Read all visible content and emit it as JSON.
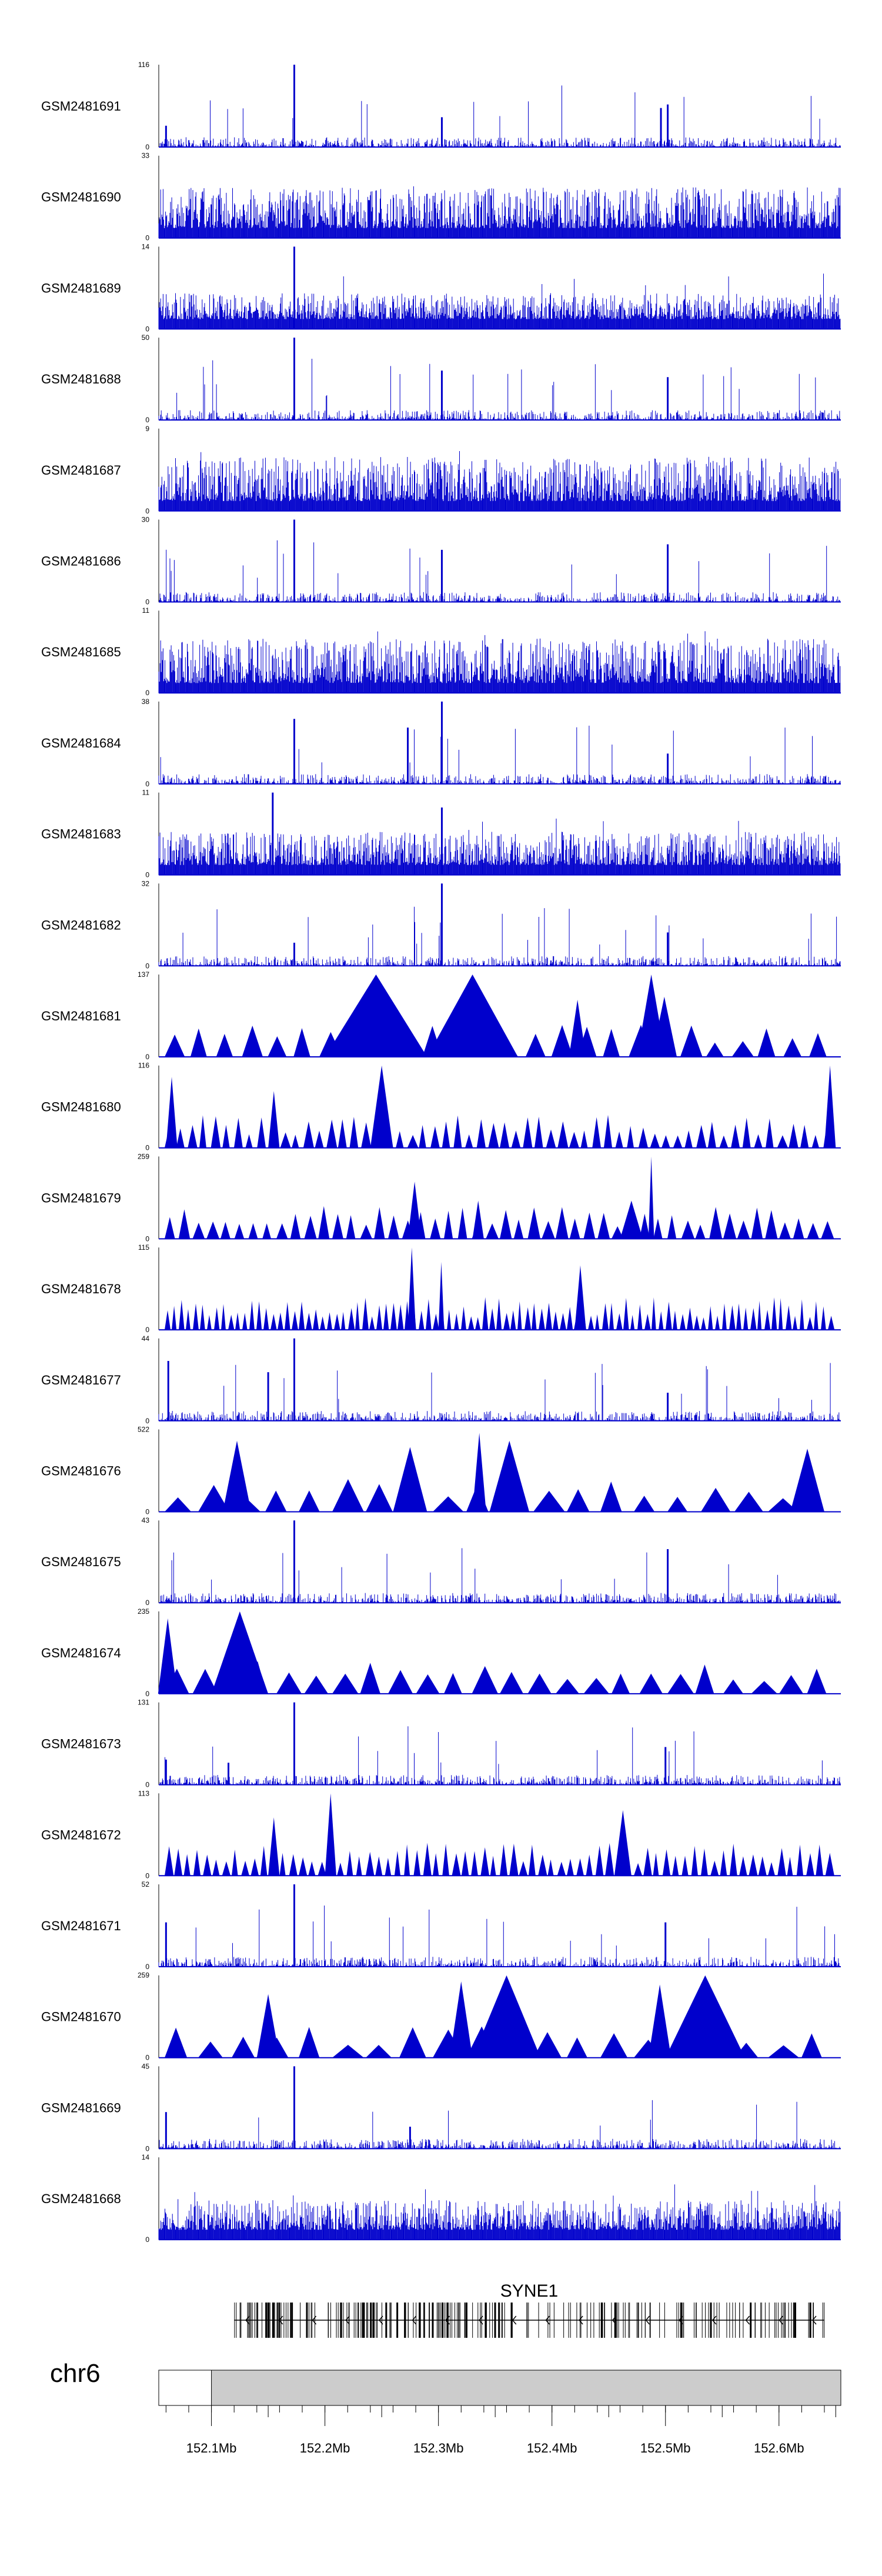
{
  "chart_data": {
    "type": "area",
    "genome_region": "chr6",
    "x_range_mb": [
      152.0536,
      152.6545
    ],
    "x_ticks": [
      152.1,
      152.15,
      152.2,
      152.25,
      152.3,
      152.35,
      152.4,
      152.45,
      152.5,
      152.55,
      152.6,
      152.65
    ],
    "x_tick_labels": [
      "152.1Mb",
      "152.2Mb",
      "152.3Mb",
      "152.4Mb",
      "152.5Mb",
      "152.6Mb"
    ],
    "gene": "SYNE1",
    "gene_range_mb": [
      152.12,
      152.64
    ],
    "series_color": "#0000cc",
    "tracks": [
      {
        "name": "GSM2481691",
        "ymax": 116,
        "style": "bars",
        "density": 0.12,
        "peaks": [
          [
            152.173,
            116
          ],
          [
            152.303,
            42
          ],
          [
            152.496,
            55
          ],
          [
            152.502,
            60
          ],
          [
            152.06,
            30
          ]
        ]
      },
      {
        "name": "GSM2481690",
        "ymax": 33,
        "style": "bars",
        "density": 0.55,
        "peaks": []
      },
      {
        "name": "GSM2481689",
        "ymax": 14,
        "style": "bars",
        "density": 0.35,
        "peaks": [
          [
            152.173,
            14
          ]
        ]
      },
      {
        "name": "GSM2481688",
        "ymax": 50,
        "style": "bars",
        "density": 0.08,
        "peaks": [
          [
            152.173,
            50
          ],
          [
            152.303,
            30
          ],
          [
            152.502,
            26
          ]
        ]
      },
      {
        "name": "GSM2481687",
        "ymax": 9,
        "style": "bars",
        "density": 0.6,
        "peaks": []
      },
      {
        "name": "GSM2481686",
        "ymax": 30,
        "style": "bars",
        "density": 0.08,
        "peaks": [
          [
            152.173,
            30
          ],
          [
            152.303,
            19
          ],
          [
            152.502,
            21
          ]
        ]
      },
      {
        "name": "GSM2481685",
        "ymax": 11,
        "style": "bars",
        "density": 0.6,
        "peaks": []
      },
      {
        "name": "GSM2481684",
        "ymax": 38,
        "style": "bars",
        "density": 0.08,
        "peaks": [
          [
            152.173,
            30
          ],
          [
            152.273,
            26
          ],
          [
            152.303,
            38
          ],
          [
            152.502,
            14
          ]
        ]
      },
      {
        "name": "GSM2481683",
        "ymax": 11,
        "style": "bars",
        "density": 0.45,
        "peaks": [
          [
            152.154,
            11
          ],
          [
            152.303,
            9
          ]
        ]
      },
      {
        "name": "GSM2481682",
        "ymax": 32,
        "style": "bars",
        "density": 0.07,
        "peaks": [
          [
            152.303,
            32
          ],
          [
            152.173,
            9
          ],
          [
            152.502,
            13
          ]
        ]
      },
      {
        "name": "GSM2481681",
        "ymax": 137,
        "style": "tri",
        "tri_count": 26,
        "big": [
          [
            152.2,
            152.29,
            137
          ],
          [
            152.29,
            152.37,
            137
          ],
          [
            152.475,
            152.5,
            137
          ],
          [
            152.415,
            152.43,
            95
          ],
          [
            152.488,
            152.51,
            100
          ]
        ]
      },
      {
        "name": "GSM2481680",
        "ymax": 116,
        "style": "tri",
        "tri_count": 58,
        "big": [
          [
            152.24,
            152.26,
            116
          ],
          [
            152.64,
            152.65,
            116
          ],
          [
            152.06,
            152.07,
            100
          ],
          [
            152.15,
            152.16,
            80
          ]
        ]
      },
      {
        "name": "GSM2481679",
        "ymax": 259,
        "style": "tri",
        "tri_count": 48,
        "big": [
          [
            152.273,
            152.285,
            180
          ],
          [
            152.485,
            152.49,
            259
          ],
          [
            152.33,
            152.34,
            120
          ],
          [
            152.46,
            152.48,
            120
          ]
        ]
      },
      {
        "name": "GSM2481678",
        "ymax": 115,
        "style": "tri",
        "tri_count": 95,
        "big": [
          [
            152.273,
            152.28,
            115
          ],
          [
            152.3,
            152.305,
            95
          ],
          [
            152.42,
            152.43,
            90
          ]
        ]
      },
      {
        "name": "GSM2481677",
        "ymax": 44,
        "style": "bars",
        "density": 0.1,
        "peaks": [
          [
            152.173,
            44
          ],
          [
            152.062,
            32
          ],
          [
            152.15,
            26
          ],
          [
            152.502,
            15
          ]
        ]
      },
      {
        "name": "GSM2481676",
        "ymax": 522,
        "style": "tri",
        "tri_count": 20,
        "big": [
          [
            152.11,
            152.135,
            450
          ],
          [
            152.345,
            152.38,
            450
          ],
          [
            152.61,
            152.64,
            400
          ],
          [
            152.26,
            152.29,
            410
          ],
          [
            152.33,
            152.342,
            500
          ]
        ]
      },
      {
        "name": "GSM2481675",
        "ymax": 43,
        "style": "bars",
        "density": 0.15,
        "peaks": [
          [
            152.173,
            43
          ],
          [
            152.502,
            28
          ]
        ]
      },
      {
        "name": "GSM2481674",
        "ymax": 235,
        "style": "tri",
        "tri_count": 24,
        "big": [
          [
            152.1,
            152.15,
            235
          ],
          [
            152.053,
            152.07,
            215
          ]
        ]
      },
      {
        "name": "GSM2481673",
        "ymax": 131,
        "style": "bars",
        "density": 0.08,
        "peaks": [
          [
            152.173,
            131
          ],
          [
            152.06,
            40
          ],
          [
            152.5,
            60
          ],
          [
            152.115,
            35
          ]
        ]
      },
      {
        "name": "GSM2481672",
        "ymax": 113,
        "style": "tri",
        "tri_count": 70,
        "big": [
          [
            152.2,
            152.21,
            113
          ],
          [
            152.455,
            152.47,
            90
          ],
          [
            152.15,
            152.16,
            80
          ]
        ]
      },
      {
        "name": "GSM2481671",
        "ymax": 52,
        "style": "bars",
        "density": 0.14,
        "peaks": [
          [
            152.173,
            52
          ],
          [
            152.06,
            28
          ],
          [
            152.5,
            28
          ]
        ]
      },
      {
        "name": "GSM2481670",
        "ymax": 259,
        "style": "tri",
        "tri_count": 20,
        "big": [
          [
            152.33,
            152.39,
            259
          ],
          [
            152.5,
            152.57,
            259
          ],
          [
            152.485,
            152.505,
            230
          ],
          [
            152.14,
            152.16,
            200
          ],
          [
            152.31,
            152.33,
            240
          ]
        ]
      },
      {
        "name": "GSM2481669",
        "ymax": 45,
        "style": "bars",
        "density": 0.1,
        "peaks": [
          [
            152.173,
            45
          ],
          [
            152.06,
            20
          ],
          [
            152.275,
            12
          ]
        ]
      },
      {
        "name": "GSM2481668",
        "ymax": 14,
        "style": "bars",
        "density": 0.4,
        "peaks": []
      }
    ]
  }
}
